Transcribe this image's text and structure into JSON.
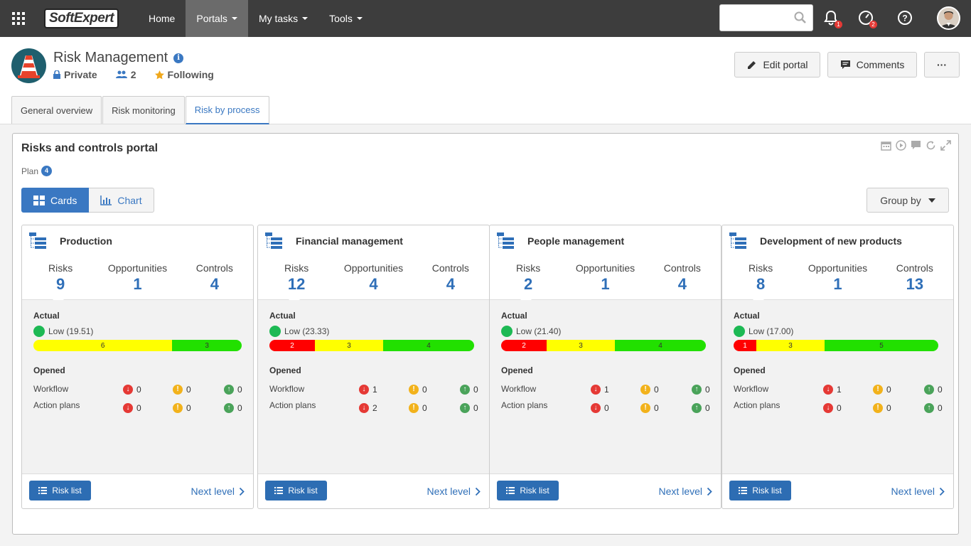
{
  "nav": {
    "logo": "SoftExpert",
    "items": [
      {
        "label": "Home",
        "caret": false
      },
      {
        "label": "Portals",
        "caret": true,
        "active": true
      },
      {
        "label": "My tasks",
        "caret": true
      },
      {
        "label": "Tools",
        "caret": true
      }
    ],
    "search_placeholder": "",
    "notifications_count": "1",
    "activity_count": "2"
  },
  "portal": {
    "title": "Risk Management",
    "privacy": "Private",
    "members": "2",
    "following": "Following",
    "edit_label": "Edit portal",
    "comments_label": "Comments",
    "more_label": "···"
  },
  "tabs": [
    {
      "label": "General overview"
    },
    {
      "label": "Risk monitoring"
    },
    {
      "label": "Risk by process",
      "active": true
    }
  ],
  "panel": {
    "title": "Risks and controls portal",
    "plan_label": "Plan",
    "plan_count": "4",
    "cards_label": "Cards",
    "chart_label": "Chart",
    "groupby_label": "Group by"
  },
  "labels": {
    "risks": "Risks",
    "opportunities": "Opportunities",
    "controls": "Controls",
    "actual": "Actual",
    "opened": "Opened",
    "workflow": "Workflow",
    "action_plans": "Action plans",
    "risk_list": "Risk list",
    "next_level": "Next level"
  },
  "colors": {
    "accent": "#3a78c2",
    "red": "#ff0000",
    "yellow": "#ffff00",
    "green": "#22e000"
  },
  "cards": [
    {
      "title": "Production",
      "risks": "9",
      "opportunities": "1",
      "controls": "4",
      "low": "Low (19.51)",
      "bar": [
        {
          "c": "y",
          "v": "6",
          "w": 6
        },
        {
          "c": "g",
          "v": "3",
          "w": 3
        }
      ],
      "workflow": [
        "0",
        "0",
        "0"
      ],
      "action_plans": [
        "0",
        "0",
        "0"
      ]
    },
    {
      "title": "Financial management",
      "risks": "12",
      "opportunities": "4",
      "controls": "4",
      "low": "Low (23.33)",
      "bar": [
        {
          "c": "r",
          "v": "2",
          "w": 2
        },
        {
          "c": "y",
          "v": "3",
          "w": 3
        },
        {
          "c": "g",
          "v": "4",
          "w": 4
        }
      ],
      "workflow": [
        "1",
        "0",
        "0"
      ],
      "action_plans": [
        "2",
        "0",
        "0"
      ]
    },
    {
      "title": "People management",
      "risks": "2",
      "opportunities": "1",
      "controls": "4",
      "low": "Low (21.40)",
      "bar": [
        {
          "c": "r",
          "v": "2",
          "w": 2
        },
        {
          "c": "y",
          "v": "3",
          "w": 3
        },
        {
          "c": "g",
          "v": "4",
          "w": 4
        }
      ],
      "workflow": [
        "1",
        "0",
        "0"
      ],
      "action_plans": [
        "0",
        "0",
        "0"
      ]
    },
    {
      "title": "Development of new products",
      "risks": "8",
      "opportunities": "1",
      "controls": "13",
      "low": "Low (17.00)",
      "bar": [
        {
          "c": "r",
          "v": "1",
          "w": 1
        },
        {
          "c": "y",
          "v": "3",
          "w": 3
        },
        {
          "c": "g",
          "v": "5",
          "w": 5
        }
      ],
      "workflow": [
        "1",
        "0",
        "0"
      ],
      "action_plans": [
        "0",
        "0",
        "0"
      ]
    }
  ]
}
